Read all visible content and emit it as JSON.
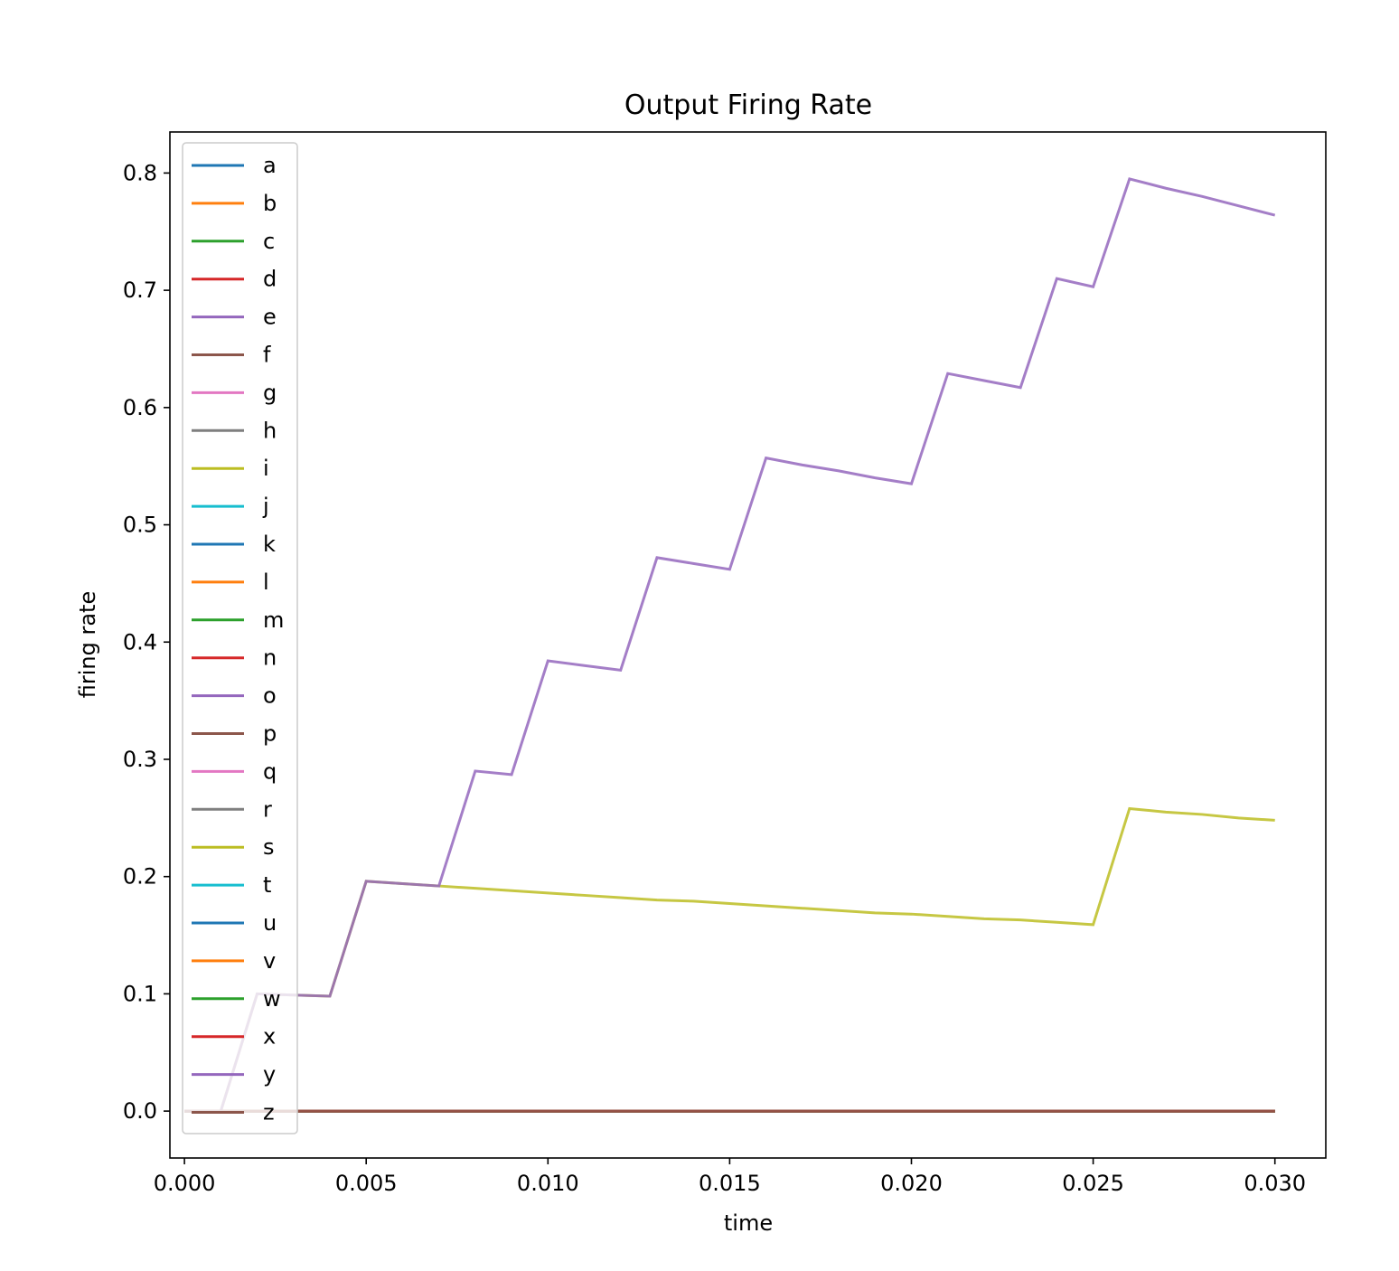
{
  "chart_data": {
    "type": "line",
    "title": "Output Firing Rate",
    "xlabel": "time",
    "ylabel": "firing rate",
    "xlim": [
      -0.0004,
      0.0314
    ],
    "ylim": [
      -0.04,
      0.835
    ],
    "xticks": [
      0.0,
      0.005,
      0.01,
      0.015,
      0.02,
      0.025,
      0.03
    ],
    "xtick_labels": [
      "0.000",
      "0.005",
      "0.010",
      "0.015",
      "0.020",
      "0.025",
      "0.030"
    ],
    "yticks": [
      0.0,
      0.1,
      0.2,
      0.3,
      0.4,
      0.5,
      0.6,
      0.7,
      0.8
    ],
    "ytick_labels": [
      "0.0",
      "0.1",
      "0.2",
      "0.3",
      "0.4",
      "0.5",
      "0.6",
      "0.7",
      "0.8"
    ],
    "grid": false,
    "legend_position": "upper-left",
    "x": [
      0.0,
      0.001,
      0.002,
      0.003,
      0.004,
      0.005,
      0.006,
      0.007,
      0.008,
      0.009,
      0.01,
      0.011,
      0.012,
      0.013,
      0.014,
      0.015,
      0.016,
      0.017,
      0.018,
      0.019,
      0.02,
      0.021,
      0.022,
      0.023,
      0.024,
      0.025,
      0.026,
      0.027,
      0.028,
      0.029,
      0.03
    ],
    "series": [
      {
        "name": "a",
        "color": "#1f77b4",
        "values": [
          0,
          0,
          0,
          0,
          0,
          0,
          0,
          0,
          0,
          0,
          0,
          0,
          0,
          0,
          0,
          0,
          0,
          0,
          0,
          0,
          0,
          0,
          0,
          0,
          0,
          0,
          0,
          0,
          0,
          0,
          0
        ]
      },
      {
        "name": "b",
        "color": "#ff7f0e",
        "values": [
          0,
          0,
          0,
          0,
          0,
          0,
          0,
          0,
          0,
          0,
          0,
          0,
          0,
          0,
          0,
          0,
          0,
          0,
          0,
          0,
          0,
          0,
          0,
          0,
          0,
          0,
          0,
          0,
          0,
          0,
          0
        ]
      },
      {
        "name": "c",
        "color": "#2ca02c",
        "values": [
          0,
          0,
          0,
          0,
          0,
          0,
          0,
          0,
          0,
          0,
          0,
          0,
          0,
          0,
          0,
          0,
          0,
          0,
          0,
          0,
          0,
          0,
          0,
          0,
          0,
          0,
          0,
          0,
          0,
          0,
          0
        ]
      },
      {
        "name": "d",
        "color": "#d62728",
        "values": [
          0,
          0,
          0,
          0,
          0,
          0,
          0,
          0,
          0,
          0,
          0,
          0,
          0,
          0,
          0,
          0,
          0,
          0,
          0,
          0,
          0,
          0,
          0,
          0,
          0,
          0,
          0,
          0,
          0,
          0,
          0
        ]
      },
      {
        "name": "e",
        "color": "#9467bd",
        "values": [
          0,
          0,
          0,
          0,
          0,
          0,
          0,
          0,
          0,
          0,
          0,
          0,
          0,
          0,
          0,
          0,
          0,
          0,
          0,
          0,
          0,
          0,
          0,
          0,
          0,
          0,
          0,
          0,
          0,
          0,
          0
        ]
      },
      {
        "name": "f",
        "color": "#8c564b",
        "values": [
          0,
          0,
          0,
          0,
          0,
          0,
          0,
          0,
          0,
          0,
          0,
          0,
          0,
          0,
          0,
          0,
          0,
          0,
          0,
          0,
          0,
          0,
          0,
          0,
          0,
          0,
          0,
          0,
          0,
          0,
          0
        ]
      },
      {
        "name": "g",
        "color": "#e377c2",
        "values": [
          0,
          0,
          0,
          0,
          0,
          0,
          0,
          0,
          0,
          0,
          0,
          0,
          0,
          0,
          0,
          0,
          0,
          0,
          0,
          0,
          0,
          0,
          0,
          0,
          0,
          0,
          0,
          0,
          0,
          0,
          0
        ]
      },
      {
        "name": "h",
        "color": "#7f7f7f",
        "values": [
          0,
          0,
          0,
          0,
          0,
          0,
          0,
          0,
          0,
          0,
          0,
          0,
          0,
          0,
          0,
          0,
          0,
          0,
          0,
          0,
          0,
          0,
          0,
          0,
          0,
          0,
          0,
          0,
          0,
          0,
          0
        ]
      },
      {
        "name": "i",
        "color": "#bcbd22",
        "values": [
          0,
          0,
          0,
          0,
          0,
          0,
          0,
          0,
          0,
          0,
          0,
          0,
          0,
          0,
          0,
          0,
          0,
          0,
          0,
          0,
          0,
          0,
          0,
          0,
          0,
          0,
          0,
          0,
          0,
          0,
          0
        ]
      },
      {
        "name": "j",
        "color": "#17becf",
        "values": [
          0,
          0,
          0,
          0,
          0,
          0,
          0,
          0,
          0,
          0,
          0,
          0,
          0,
          0,
          0,
          0,
          0,
          0,
          0,
          0,
          0,
          0,
          0,
          0,
          0,
          0,
          0,
          0,
          0,
          0,
          0
        ]
      },
      {
        "name": "k",
        "color": "#1f77b4",
        "values": [
          0,
          0,
          0,
          0,
          0,
          0,
          0,
          0,
          0,
          0,
          0,
          0,
          0,
          0,
          0,
          0,
          0,
          0,
          0,
          0,
          0,
          0,
          0,
          0,
          0,
          0,
          0,
          0,
          0,
          0,
          0
        ]
      },
      {
        "name": "l",
        "color": "#ff7f0e",
        "values": [
          0,
          0,
          0,
          0,
          0,
          0,
          0,
          0,
          0,
          0,
          0,
          0,
          0,
          0,
          0,
          0,
          0,
          0,
          0,
          0,
          0,
          0,
          0,
          0,
          0,
          0,
          0,
          0,
          0,
          0,
          0
        ]
      },
      {
        "name": "m",
        "color": "#2ca02c",
        "values": [
          0,
          0,
          0,
          0,
          0,
          0,
          0,
          0,
          0,
          0,
          0,
          0,
          0,
          0,
          0,
          0,
          0,
          0,
          0,
          0,
          0,
          0,
          0,
          0,
          0,
          0,
          0,
          0,
          0,
          0,
          0
        ]
      },
      {
        "name": "n",
        "color": "#d62728",
        "values": [
          0,
          0,
          0,
          0,
          0,
          0,
          0,
          0,
          0,
          0,
          0,
          0,
          0,
          0,
          0,
          0,
          0,
          0,
          0,
          0,
          0,
          0,
          0,
          0,
          0,
          0,
          0,
          0,
          0,
          0,
          0
        ]
      },
      {
        "name": "o",
        "color": "#9467bd",
        "values": [
          0,
          0,
          0,
          0,
          0,
          0,
          0,
          0,
          0,
          0,
          0,
          0,
          0,
          0,
          0,
          0,
          0,
          0,
          0,
          0,
          0,
          0,
          0,
          0,
          0,
          0,
          0,
          0,
          0,
          0,
          0
        ]
      },
      {
        "name": "p",
        "color": "#8c564b",
        "values": [
          0,
          0,
          0,
          0,
          0,
          0,
          0,
          0,
          0,
          0,
          0,
          0,
          0,
          0,
          0,
          0,
          0,
          0,
          0,
          0,
          0,
          0,
          0,
          0,
          0,
          0,
          0,
          0,
          0,
          0,
          0
        ]
      },
      {
        "name": "q",
        "color": "#e377c2",
        "values": [
          0,
          0,
          0,
          0,
          0,
          0,
          0,
          0,
          0,
          0,
          0,
          0,
          0,
          0,
          0,
          0,
          0,
          0,
          0,
          0,
          0,
          0,
          0,
          0,
          0,
          0,
          0,
          0,
          0,
          0,
          0
        ]
      },
      {
        "name": "r",
        "color": "#7f7f7f",
        "values": [
          0,
          0,
          0,
          0,
          0,
          0,
          0,
          0,
          0,
          0,
          0,
          0,
          0,
          0,
          0,
          0,
          0,
          0,
          0,
          0,
          0,
          0,
          0,
          0,
          0,
          0,
          0,
          0,
          0,
          0,
          0
        ]
      },
      {
        "name": "s",
        "color": "#bcbd22",
        "values": [
          0.0,
          0.0,
          0.1,
          0.099,
          0.098,
          0.196,
          0.194,
          0.192,
          0.19,
          0.188,
          0.186,
          0.184,
          0.182,
          0.18,
          0.179,
          0.177,
          0.175,
          0.173,
          0.171,
          0.169,
          0.168,
          0.166,
          0.164,
          0.163,
          0.161,
          0.159,
          0.258,
          0.255,
          0.253,
          0.25,
          0.248
        ]
      },
      {
        "name": "t",
        "color": "#17becf",
        "values": [
          0,
          0,
          0,
          0,
          0,
          0,
          0,
          0,
          0,
          0,
          0,
          0,
          0,
          0,
          0,
          0,
          0,
          0,
          0,
          0,
          0,
          0,
          0,
          0,
          0,
          0,
          0,
          0,
          0,
          0,
          0
        ]
      },
      {
        "name": "u",
        "color": "#1f77b4",
        "values": [
          0,
          0,
          0,
          0,
          0,
          0,
          0,
          0,
          0,
          0,
          0,
          0,
          0,
          0,
          0,
          0,
          0,
          0,
          0,
          0,
          0,
          0,
          0,
          0,
          0,
          0,
          0,
          0,
          0,
          0,
          0
        ]
      },
      {
        "name": "v",
        "color": "#ff7f0e",
        "values": [
          0,
          0,
          0,
          0,
          0,
          0,
          0,
          0,
          0,
          0,
          0,
          0,
          0,
          0,
          0,
          0,
          0,
          0,
          0,
          0,
          0,
          0,
          0,
          0,
          0,
          0,
          0,
          0,
          0,
          0,
          0
        ]
      },
      {
        "name": "w",
        "color": "#2ca02c",
        "values": [
          0,
          0,
          0,
          0,
          0,
          0,
          0,
          0,
          0,
          0,
          0,
          0,
          0,
          0,
          0,
          0,
          0,
          0,
          0,
          0,
          0,
          0,
          0,
          0,
          0,
          0,
          0,
          0,
          0,
          0,
          0
        ]
      },
      {
        "name": "x",
        "color": "#d62728",
        "values": [
          0,
          0,
          0,
          0,
          0,
          0,
          0,
          0,
          0,
          0,
          0,
          0,
          0,
          0,
          0,
          0,
          0,
          0,
          0,
          0,
          0,
          0,
          0,
          0,
          0,
          0,
          0,
          0,
          0,
          0,
          0
        ]
      },
      {
        "name": "y",
        "color": "#9467bd",
        "values": [
          0.0,
          0.0,
          0.1,
          0.099,
          0.098,
          0.196,
          0.194,
          0.192,
          0.29,
          0.287,
          0.384,
          0.38,
          0.376,
          0.472,
          0.467,
          0.462,
          0.557,
          0.551,
          0.546,
          0.54,
          0.535,
          0.629,
          0.623,
          0.617,
          0.71,
          0.703,
          0.795,
          0.787,
          0.78,
          0.772,
          0.764
        ]
      },
      {
        "name": "z",
        "color": "#8c564b",
        "values": [
          0,
          0,
          0,
          0,
          0,
          0,
          0,
          0,
          0,
          0,
          0,
          0,
          0,
          0,
          0,
          0,
          0,
          0,
          0,
          0,
          0,
          0,
          0,
          0,
          0,
          0,
          0,
          0,
          0,
          0,
          0
        ]
      }
    ]
  }
}
